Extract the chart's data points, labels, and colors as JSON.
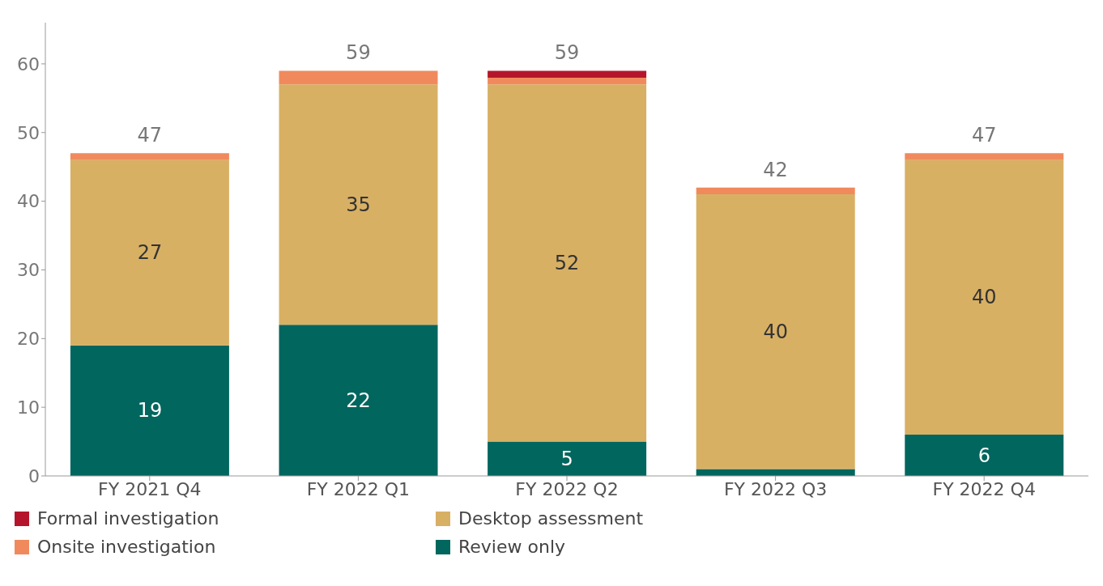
{
  "chart_data": {
    "type": "bar",
    "stacked": true,
    "categories": [
      "FY 2021 Q4",
      "FY 2022 Q1",
      "FY 2022 Q2",
      "FY 2022 Q3",
      "FY 2022 Q4"
    ],
    "series": [
      {
        "name": "Review only",
        "color": "#00665e",
        "values": [
          19,
          22,
          5,
          1,
          6
        ],
        "value_labels": [
          "19",
          "22",
          "5",
          null,
          "6"
        ]
      },
      {
        "name": "Desktop assessment",
        "color": "#d8b064",
        "values": [
          27,
          35,
          52,
          40,
          40
        ],
        "value_labels": [
          "27",
          "35",
          "52",
          "40",
          "40"
        ]
      },
      {
        "name": "Onsite investigation",
        "color": "#f08a5d",
        "values": [
          1,
          2,
          1,
          1,
          1
        ],
        "value_labels": [
          null,
          null,
          null,
          null,
          null
        ]
      },
      {
        "name": "Formal investigation",
        "color": "#b5152b",
        "values": [
          0,
          0,
          1,
          0,
          0
        ],
        "value_labels": [
          null,
          null,
          null,
          null,
          null
        ]
      }
    ],
    "totals": [
      "47",
      "59",
      "59",
      "42",
      "47"
    ],
    "ylim": [
      0,
      66
    ],
    "yticks": [
      0,
      10,
      20,
      30,
      40,
      50,
      60
    ],
    "grid": false,
    "legend": "bottom"
  }
}
